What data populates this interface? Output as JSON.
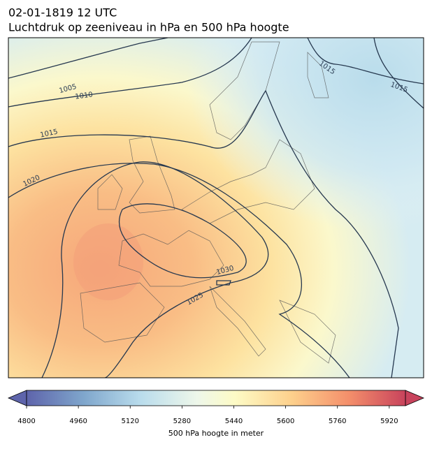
{
  "title": {
    "line1": "02-01-1819 12 UTC",
    "line2": "Luchtdruk op zeeniveau in hPa en 500 hPa hoogte"
  },
  "map": {
    "contour_labels": [
      "1005",
      "1010",
      "1015",
      "1020",
      "1025",
      "1030",
      "1015",
      "1015"
    ]
  },
  "colorbar": {
    "label": "500 hPa hoogte in meter",
    "vlim": [
      4800,
      5970
    ],
    "ticks": [
      4800,
      4960,
      5120,
      5280,
      5440,
      5600,
      5760,
      5920
    ]
  }
}
